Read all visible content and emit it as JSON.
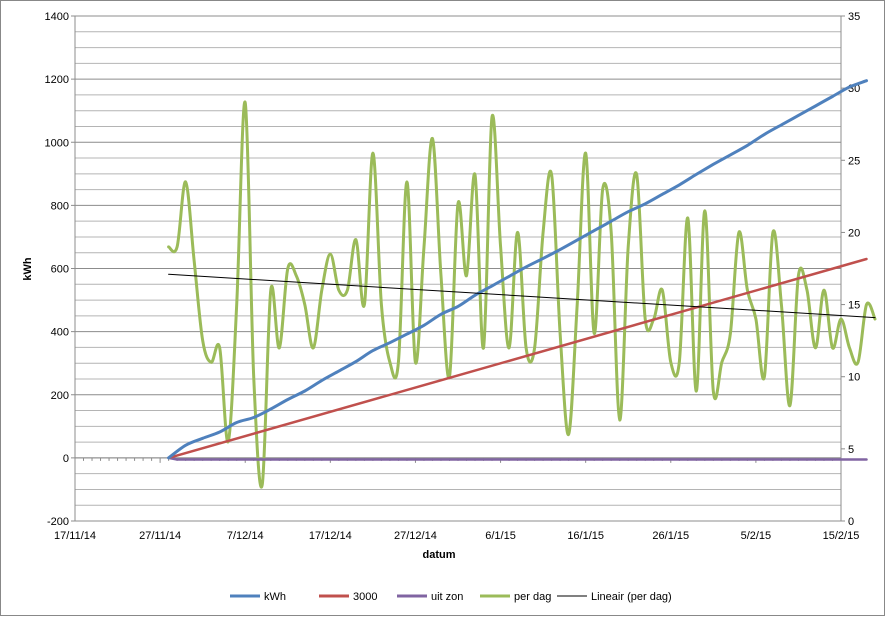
{
  "chart_data": {
    "type": "line",
    "title": "",
    "xlabel": "datum",
    "ylabel": "kWh",
    "y2label": "",
    "x_ticks": [
      "17/11/14",
      "27/11/14",
      "7/12/14",
      "17/12/14",
      "27/12/14",
      "6/1/15",
      "16/1/15",
      "26/1/15",
      "5/2/15",
      "15/2/15"
    ],
    "xlim": [
      "2014-11-17",
      "2015-02-15"
    ],
    "ylim": [
      -200,
      1400
    ],
    "y_ticks": [
      -200,
      0,
      200,
      400,
      600,
      800,
      1000,
      1200,
      1400
    ],
    "y2lim": [
      0,
      35
    ],
    "y2_ticks": [
      0,
      5,
      10,
      15,
      20,
      25,
      30,
      35
    ],
    "grid": "horizontal minor lines every 50 kWh",
    "legend_position": "bottom",
    "series": [
      {
        "name": "kWh",
        "axis": "left",
        "color": "#4F81BD",
        "points": [
          [
            "2014-11-28",
            0
          ],
          [
            "2014-11-30",
            40
          ],
          [
            "2014-12-02",
            62
          ],
          [
            "2014-12-04",
            82
          ],
          [
            "2014-12-06",
            112
          ],
          [
            "2014-12-08",
            128
          ],
          [
            "2014-12-10",
            155
          ],
          [
            "2014-12-12",
            185
          ],
          [
            "2014-12-14",
            212
          ],
          [
            "2014-12-16",
            245
          ],
          [
            "2014-12-18",
            275
          ],
          [
            "2014-12-20",
            305
          ],
          [
            "2014-12-22",
            340
          ],
          [
            "2014-12-24",
            365
          ],
          [
            "2014-12-26",
            392
          ],
          [
            "2014-12-28",
            420
          ],
          [
            "2014-12-30",
            455
          ],
          [
            "2015-01-01",
            480
          ],
          [
            "2015-01-03",
            515
          ],
          [
            "2015-01-05",
            545
          ],
          [
            "2015-01-07",
            575
          ],
          [
            "2015-01-09",
            605
          ],
          [
            "2015-01-11",
            632
          ],
          [
            "2015-01-13",
            660
          ],
          [
            "2015-01-15",
            690
          ],
          [
            "2015-01-17",
            720
          ],
          [
            "2015-01-19",
            750
          ],
          [
            "2015-01-21",
            780
          ],
          [
            "2015-01-23",
            805
          ],
          [
            "2015-01-25",
            835
          ],
          [
            "2015-01-27",
            865
          ],
          [
            "2015-01-29",
            898
          ],
          [
            "2015-01-31",
            930
          ],
          [
            "2015-02-02",
            960
          ],
          [
            "2015-02-04",
            990
          ],
          [
            "2015-02-06",
            1025
          ],
          [
            "2015-02-08",
            1055
          ],
          [
            "2015-02-10",
            1085
          ],
          [
            "2015-02-12",
            1115
          ],
          [
            "2015-02-14",
            1145
          ],
          [
            "2015-02-16",
            1175
          ],
          [
            "2015-02-18",
            1195
          ]
        ]
      },
      {
        "name": "3000",
        "axis": "left",
        "color": "#C0504D",
        "points": [
          [
            "2014-11-28",
            0
          ],
          [
            "2015-02-18",
            630
          ]
        ]
      },
      {
        "name": "uit zon",
        "axis": "left",
        "color": "#8064A2",
        "points": [
          [
            "2014-11-28",
            0
          ],
          [
            "2014-11-29",
            -5
          ],
          [
            "2015-02-18",
            -5
          ]
        ]
      },
      {
        "name": "per dag",
        "axis": "right",
        "color": "#9BBB59",
        "points": [
          [
            "2014-11-28",
            19
          ],
          [
            "2014-11-29",
            19
          ],
          [
            "2014-11-30",
            23.5
          ],
          [
            "2014-12-01",
            18
          ],
          [
            "2014-12-02",
            12.5
          ],
          [
            "2014-12-03",
            11
          ],
          [
            "2014-12-04",
            12
          ],
          [
            "2014-12-05",
            5.5
          ],
          [
            "2014-12-06",
            15
          ],
          [
            "2014-12-07",
            29
          ],
          [
            "2014-12-08",
            10
          ],
          [
            "2014-12-09",
            2.5
          ],
          [
            "2014-12-10",
            16
          ],
          [
            "2014-12-11",
            12
          ],
          [
            "2014-12-12",
            17.5
          ],
          [
            "2014-12-13",
            17
          ],
          [
            "2014-12-14",
            15
          ],
          [
            "2014-12-15",
            12
          ],
          [
            "2014-12-16",
            16
          ],
          [
            "2014-12-17",
            18.5
          ],
          [
            "2014-12-18",
            16
          ],
          [
            "2014-12-19",
            16
          ],
          [
            "2014-12-20",
            19.5
          ],
          [
            "2014-12-21",
            15
          ],
          [
            "2014-12-22",
            25.5
          ],
          [
            "2014-12-23",
            15
          ],
          [
            "2014-12-24",
            11
          ],
          [
            "2014-12-25",
            11
          ],
          [
            "2014-12-26",
            23.5
          ],
          [
            "2014-12-27",
            11
          ],
          [
            "2014-12-28",
            19
          ],
          [
            "2014-12-29",
            26.5
          ],
          [
            "2014-12-30",
            17
          ],
          [
            "2014-12-31",
            10
          ],
          [
            "2015-01-01",
            22
          ],
          [
            "2015-01-02",
            17
          ],
          [
            "2015-01-03",
            24
          ],
          [
            "2015-01-04",
            12
          ],
          [
            "2015-01-05",
            28
          ],
          [
            "2015-01-06",
            19
          ],
          [
            "2015-01-07",
            12
          ],
          [
            "2015-01-08",
            20
          ],
          [
            "2015-01-09",
            12
          ],
          [
            "2015-01-10",
            12
          ],
          [
            "2015-01-11",
            20
          ],
          [
            "2015-01-12",
            24
          ],
          [
            "2015-01-13",
            13
          ],
          [
            "2015-01-14",
            6
          ],
          [
            "2015-01-15",
            15
          ],
          [
            "2015-01-16",
            25.5
          ],
          [
            "2015-01-17",
            13
          ],
          [
            "2015-01-18",
            23
          ],
          [
            "2015-01-19",
            20
          ],
          [
            "2015-01-20",
            7
          ],
          [
            "2015-01-21",
            19
          ],
          [
            "2015-01-22",
            24
          ],
          [
            "2015-01-23",
            14
          ],
          [
            "2015-01-24",
            14
          ],
          [
            "2015-01-25",
            16
          ],
          [
            "2015-01-26",
            11
          ],
          [
            "2015-01-27",
            11
          ],
          [
            "2015-01-28",
            21
          ],
          [
            "2015-01-29",
            9
          ],
          [
            "2015-01-30",
            21.5
          ],
          [
            "2015-01-31",
            9
          ],
          [
            "2015-02-01",
            11
          ],
          [
            "2015-02-02",
            13
          ],
          [
            "2015-02-03",
            20
          ],
          [
            "2015-02-04",
            16
          ],
          [
            "2015-02-05",
            14
          ],
          [
            "2015-02-06",
            10
          ],
          [
            "2015-02-07",
            20
          ],
          [
            "2015-02-08",
            15
          ],
          [
            "2015-02-09",
            8
          ],
          [
            "2015-02-10",
            17
          ],
          [
            "2015-02-11",
            16
          ],
          [
            "2015-02-12",
            12
          ],
          [
            "2015-02-13",
            16
          ],
          [
            "2015-02-14",
            12
          ],
          [
            "2015-02-15",
            14
          ],
          [
            "2015-02-16",
            12
          ],
          [
            "2015-02-17",
            11
          ],
          [
            "2015-02-18",
            15
          ],
          [
            "2015-02-19",
            14
          ]
        ]
      },
      {
        "name": "Lineair (per dag)",
        "axis": "right",
        "color": "#000000",
        "points": [
          [
            "2014-11-28",
            17.1
          ],
          [
            "2015-02-19",
            14.1
          ]
        ]
      }
    ]
  }
}
